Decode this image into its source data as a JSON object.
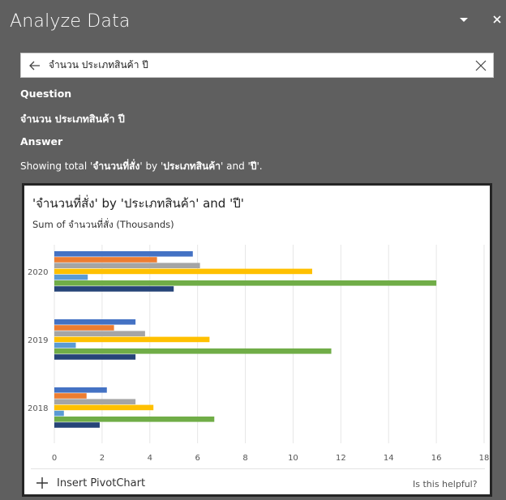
{
  "window": {
    "title": "Analyze Data"
  },
  "search": {
    "value": "จำนวน ประเภทสินค้า ปี"
  },
  "question": {
    "heading": "Question",
    "text": "จำนวน ประเภทสินค้า ปี"
  },
  "answer": {
    "heading": "Answer",
    "prefix": "Showing total '",
    "measure": "จำนวนที่สั่ง",
    "by": "' by '",
    "dim1": "ประเภทสินค้า",
    "and": "' and '",
    "dim2": "ปี",
    "suffix": "'."
  },
  "card": {
    "title": "'จำนวนที่สั่ง' by 'ประเภทสินค้า' and 'ปี'",
    "subtitle": "Sum of จำนวนที่สั่ง (Thousands)",
    "insert_label": "Insert PivotChart",
    "helpful_label": "Is this helpful?"
  },
  "chart_data": {
    "type": "bar",
    "orientation": "horizontal",
    "categories": [
      "2020",
      "2019",
      "2018"
    ],
    "series": [
      {
        "values": [
          5.8,
          3.4,
          2.2
        ],
        "color": "#4472c4"
      },
      {
        "values": [
          4.3,
          2.5,
          1.35
        ],
        "color": "#ed7d31"
      },
      {
        "values": [
          6.1,
          3.8,
          3.4
        ],
        "color": "#a5a5a5"
      },
      {
        "values": [
          10.8,
          6.5,
          4.15
        ],
        "color": "#ffc000"
      },
      {
        "values": [
          1.4,
          0.9,
          0.4
        ],
        "color": "#5b9bd5"
      },
      {
        "values": [
          16.0,
          11.6,
          6.7
        ],
        "color": "#70ad47"
      },
      {
        "values": [
          5.0,
          3.4,
          1.9
        ],
        "color": "#264478"
      }
    ],
    "x_ticks": [
      0,
      2,
      4,
      6,
      8,
      10,
      12,
      14,
      16,
      18
    ],
    "xlim": [
      0,
      18
    ],
    "grid": true,
    "legend": "none"
  }
}
